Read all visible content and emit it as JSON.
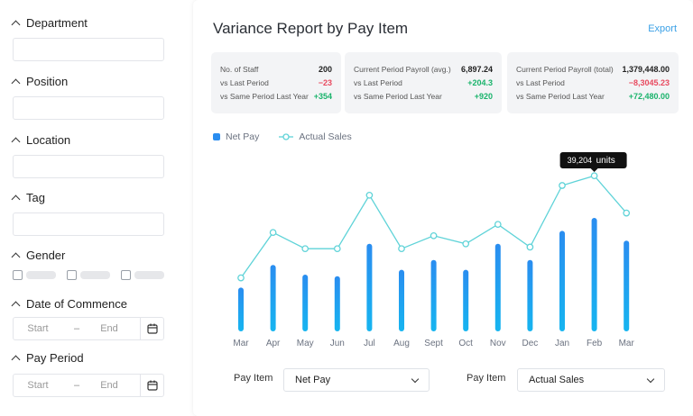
{
  "sidebar": {
    "department": "Department",
    "position": "Position",
    "location": "Location",
    "tag": "Tag",
    "gender": "Gender",
    "date_of_commence": {
      "label": "Date of Commence",
      "start": "Start",
      "dash": "–",
      "end": "End"
    },
    "pay_period": {
      "label": "Pay Period",
      "start": "Start",
      "dash": "–",
      "end": "End"
    }
  },
  "report": {
    "title": "Variance Report by Pay Item",
    "export": "Export"
  },
  "stats": [
    {
      "rows": [
        {
          "label": "No. of Staff",
          "value": "200",
          "tone": "dark"
        },
        {
          "label": "vs Last Period",
          "value": "−23",
          "tone": "neg"
        },
        {
          "label": "vs Same Period Last Year",
          "value": "+354",
          "tone": "pos"
        }
      ]
    },
    {
      "rows": [
        {
          "label": "Current Period Payroll (avg.)",
          "value": "6,897.24",
          "tone": "dark"
        },
        {
          "label": "vs Last Period",
          "value": "+204.3",
          "tone": "pos"
        },
        {
          "label": "vs Same Period Last Year",
          "value": "+920",
          "tone": "pos"
        }
      ]
    },
    {
      "rows": [
        {
          "label": "Current Period Payroll (total)",
          "value": "1,379,448.00",
          "tone": "dark"
        },
        {
          "label": "vs Last Period",
          "value": "−8,3045.23",
          "tone": "neg"
        },
        {
          "label": "vs Same Period Last Year",
          "value": "+72,480.00",
          "tone": "pos"
        }
      ]
    }
  ],
  "legend": {
    "net_pay": "Net Pay",
    "actual_sales": "Actual Sales"
  },
  "tooltip": {
    "value": "39,204",
    "unit": "units"
  },
  "controls": {
    "left": {
      "label": "Pay Item",
      "value": "Net Pay"
    },
    "right": {
      "label": "Pay Item",
      "value": "Actual Sales"
    }
  },
  "colors": {
    "bar_top": "#2a8df0",
    "bar_bottom": "#16b5f0",
    "line": "#5fd3d8",
    "accent": "#3aa0e6"
  },
  "chart_data": {
    "type": "bar",
    "categories": [
      "Mar",
      "Apr",
      "May",
      "Jun",
      "Jul",
      "Aug",
      "Sept",
      "Oct",
      "Nov",
      "Dec",
      "Jan",
      "Feb",
      "Mar"
    ],
    "series": [
      {
        "name": "Net Pay",
        "type": "bar",
        "values": [
          27,
          41,
          35,
          34,
          54,
          38,
          44,
          38,
          54,
          44,
          62,
          70,
          56
        ]
      },
      {
        "name": "Actual Sales",
        "type": "line",
        "values": [
          33,
          61,
          51,
          51,
          84,
          51,
          59,
          54,
          66,
          52,
          90,
          96,
          73
        ]
      }
    ],
    "ylim": [
      0,
      100
    ],
    "grid": false,
    "legend": "top-left",
    "highlight": {
      "index": 11,
      "label": "39,204 units"
    }
  }
}
